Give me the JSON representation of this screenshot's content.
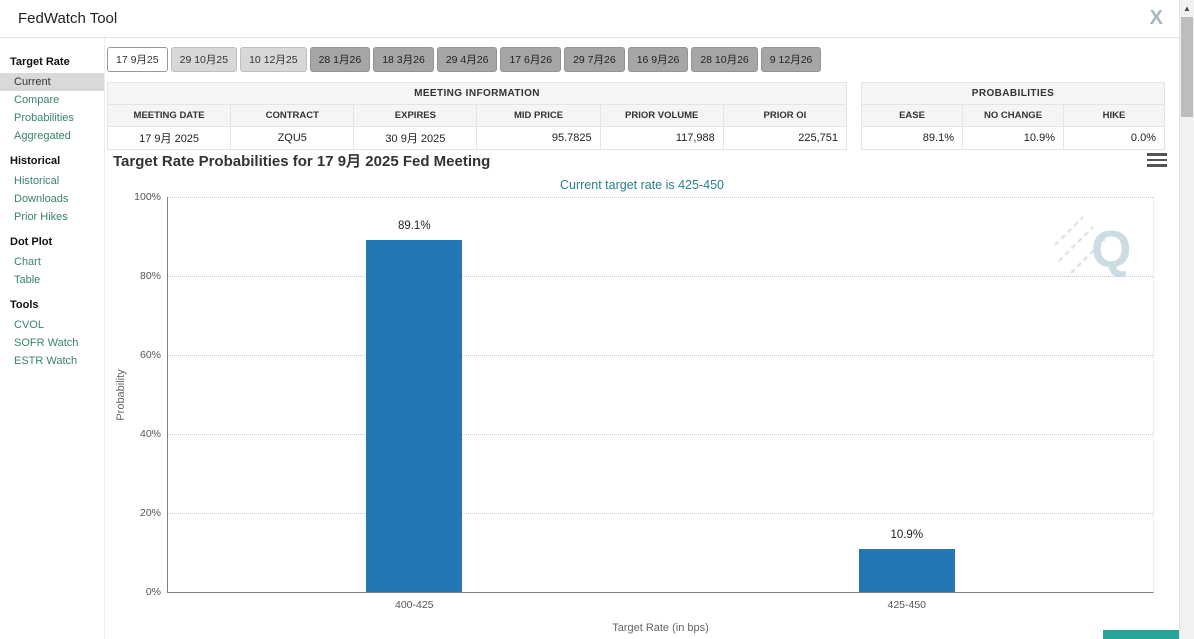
{
  "header": {
    "title": "FedWatch Tool",
    "x_icon": "X"
  },
  "colors": {
    "link": "#3a8272",
    "accent": "#2a7f8f",
    "bar": "#2277b4",
    "strip": "#27a698"
  },
  "sidebar": {
    "groups": [
      {
        "title": "Target Rate",
        "items": [
          {
            "label": "Current",
            "active": true
          },
          {
            "label": "Compare"
          },
          {
            "label": "Probabilities"
          },
          {
            "label": "Aggregated"
          }
        ]
      },
      {
        "title": "Historical",
        "items": [
          {
            "label": "Historical"
          },
          {
            "label": "Downloads"
          },
          {
            "label": "Prior Hikes"
          }
        ]
      },
      {
        "title": "Dot Plot",
        "items": [
          {
            "label": "Chart"
          },
          {
            "label": "Table"
          }
        ]
      },
      {
        "title": "Tools",
        "items": [
          {
            "label": "CVOL"
          },
          {
            "label": "SOFR Watch"
          },
          {
            "label": "ESTR Watch"
          }
        ]
      }
    ]
  },
  "tabs": [
    {
      "label": "17 9月25",
      "variant": "selected"
    },
    {
      "label": "29 10月25",
      "variant": "light"
    },
    {
      "label": "10 12月25",
      "variant": "light"
    },
    {
      "label": "28 1月26",
      "variant": "dark"
    },
    {
      "label": "18 3月26",
      "variant": "dark"
    },
    {
      "label": "29 4月26",
      "variant": "dark"
    },
    {
      "label": "17 6月26",
      "variant": "dark"
    },
    {
      "label": "29 7月26",
      "variant": "dark"
    },
    {
      "label": "16 9月26",
      "variant": "dark"
    },
    {
      "label": "28 10月26",
      "variant": "dark"
    },
    {
      "label": "9 12月26",
      "variant": "dark"
    }
  ],
  "meeting_info": {
    "title": "MEETING INFORMATION",
    "columns": [
      "MEETING DATE",
      "CONTRACT",
      "EXPIRES",
      "MID PRICE",
      "PRIOR VOLUME",
      "PRIOR OI"
    ],
    "row": [
      "17 9月 2025",
      "ZQU5",
      "30 9月 2025",
      "95.7825",
      "117,988",
      "225,751"
    ],
    "align": [
      "center",
      "center",
      "center",
      "right",
      "right",
      "right"
    ]
  },
  "probabilities": {
    "title": "PROBABILITIES",
    "columns": [
      "EASE",
      "NO CHANGE",
      "HIKE"
    ],
    "row": [
      "89.1%",
      "10.9%",
      "0.0%"
    ],
    "align": [
      "right",
      "right",
      "right"
    ]
  },
  "chart_data": {
    "type": "bar",
    "title": "Target Rate Probabilities for 17 9月 2025 Fed Meeting",
    "subtitle": "Current target rate is 425-450",
    "categories": [
      "400-425",
      "425-450"
    ],
    "values": [
      89.1,
      10.9
    ],
    "value_labels": [
      "89.1%",
      "10.9%"
    ],
    "xlabel": "Target Rate (in bps)",
    "ylabel": "Probability",
    "ylim": [
      0,
      100
    ],
    "yticks": [
      "100%",
      "80%",
      "60%",
      "40%",
      "20%",
      "0%"
    ],
    "grid": "horizontal-dotted",
    "legend": "none",
    "bar_color": "#2277b4"
  }
}
